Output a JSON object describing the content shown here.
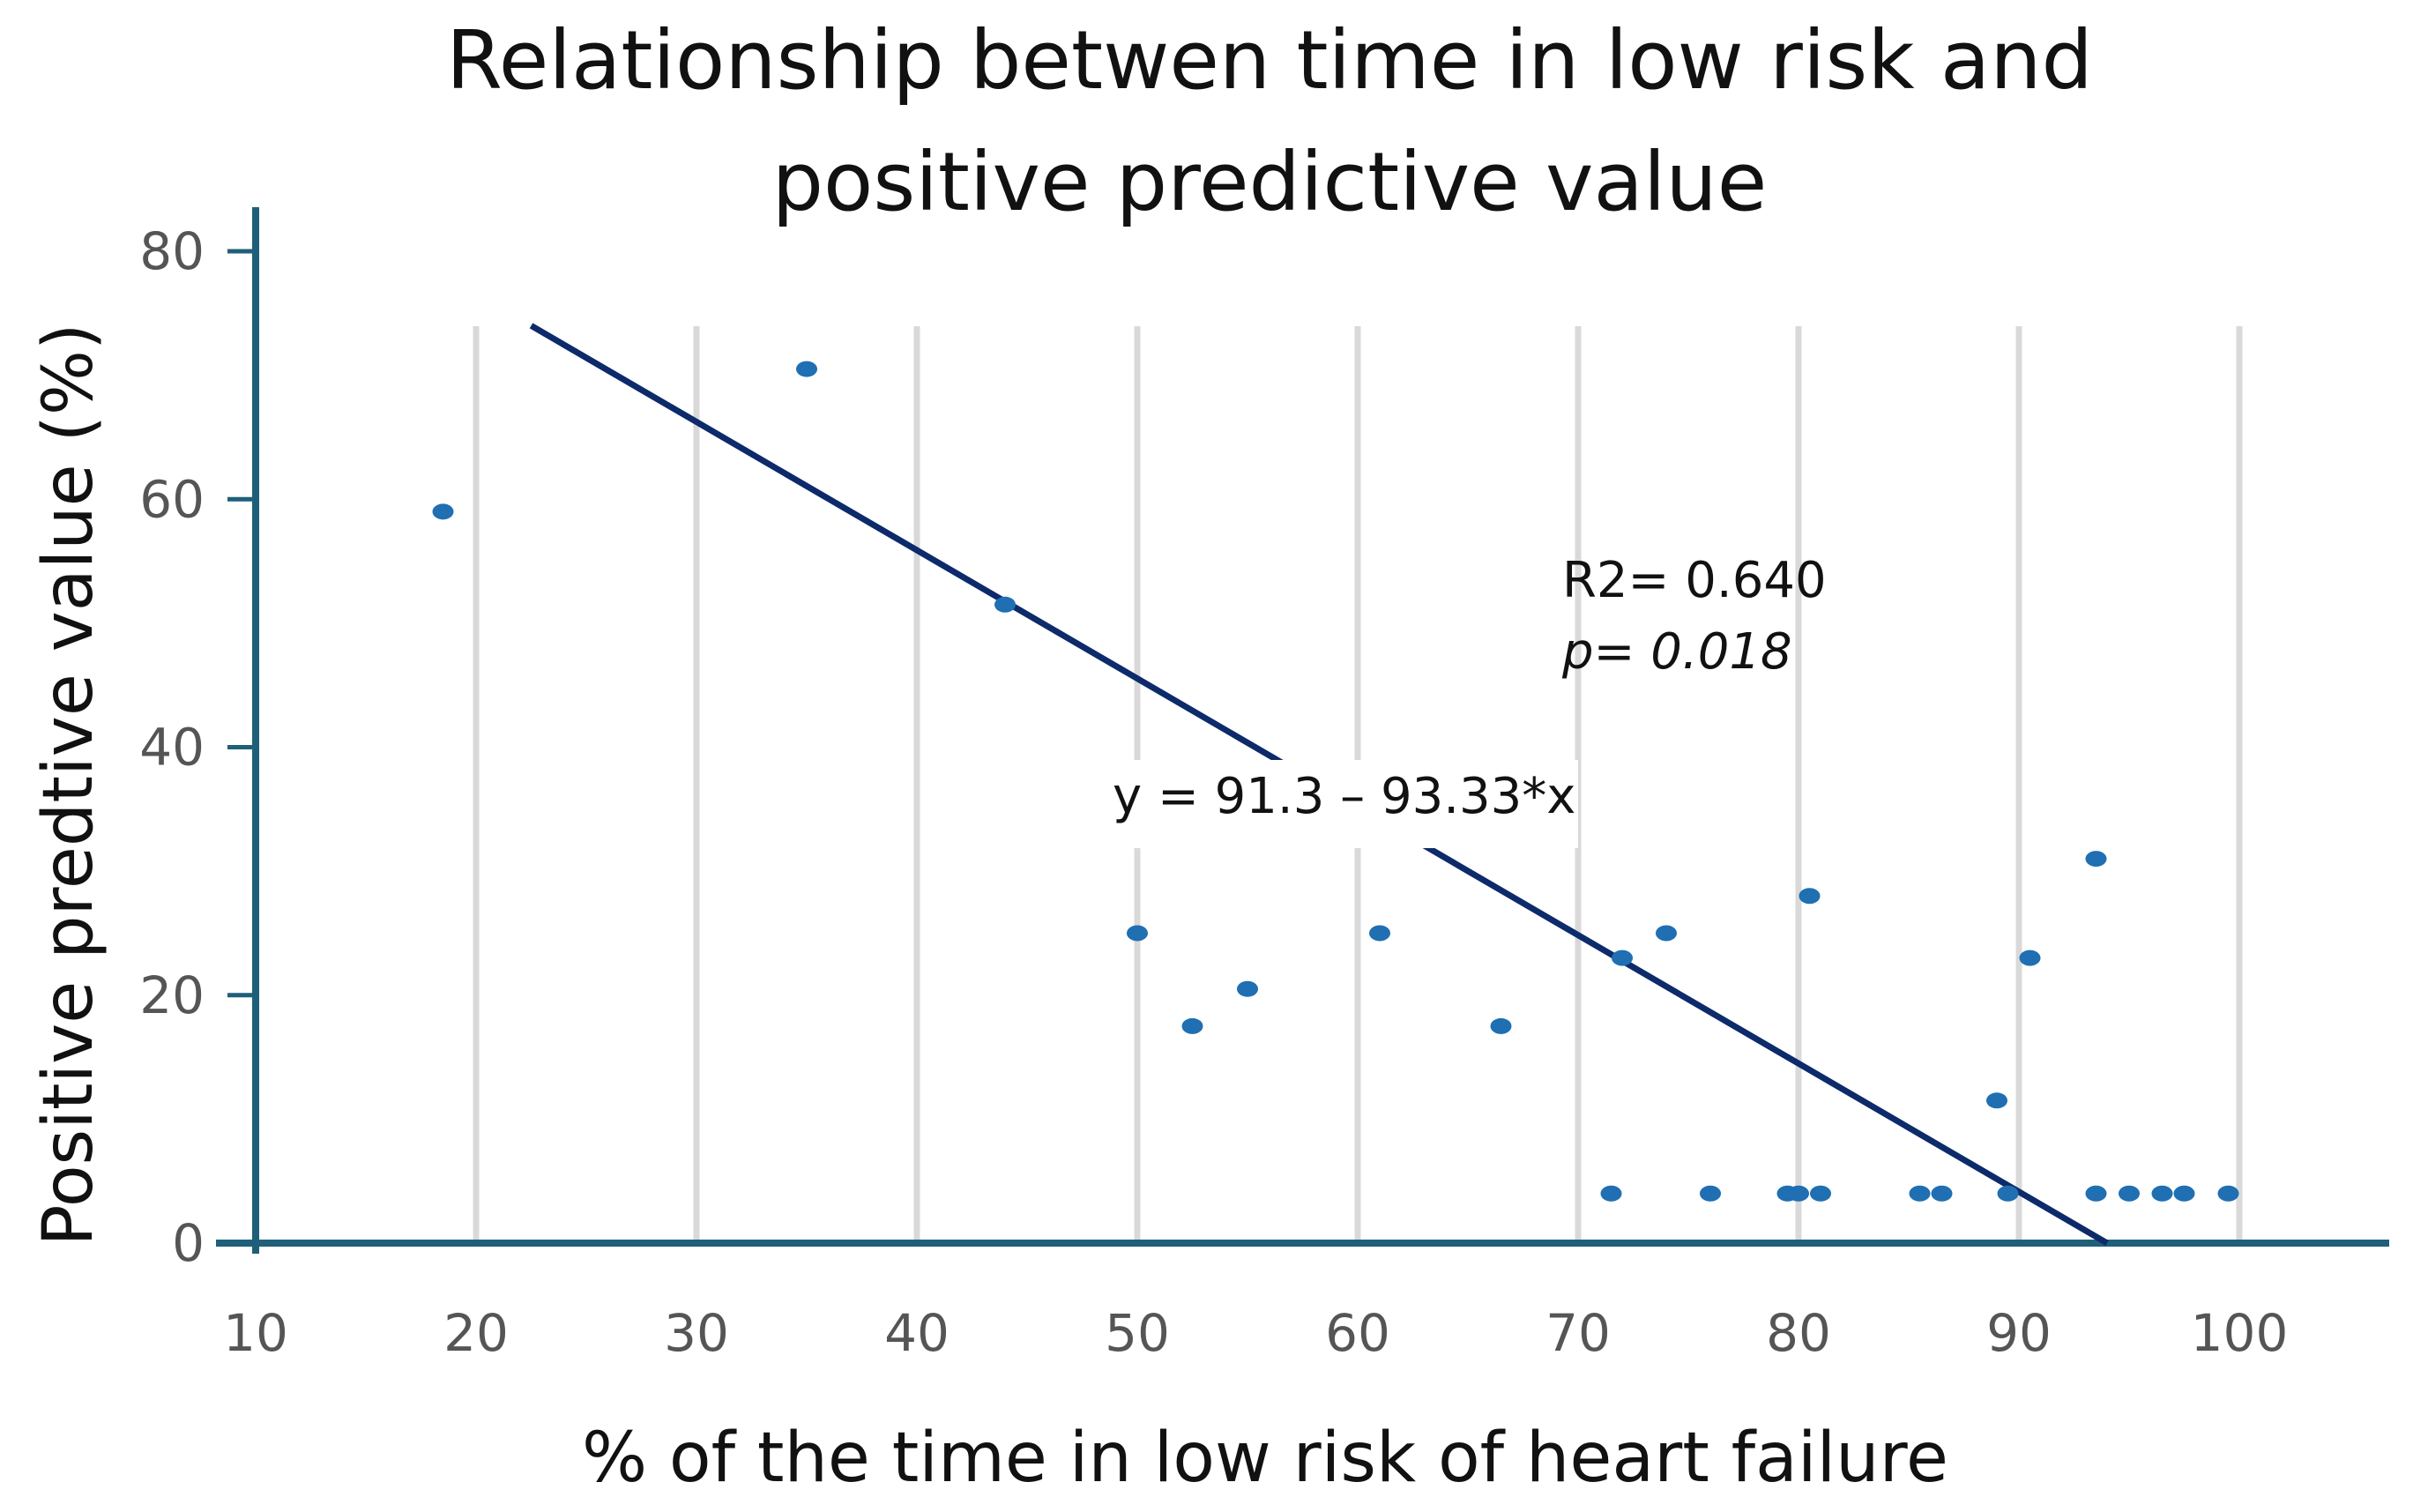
{
  "chart_data": {
    "type": "scatter",
    "title_lines": [
      "Relationship betwen time in low risk and",
      "positive predictive value"
    ],
    "xlabel": "% of the time in low risk of heart failure",
    "ylabel": "Positive predtive value (%)",
    "xlim": [
      10,
      105
    ],
    "ylim": [
      0,
      80
    ],
    "x_ticks": [
      "10",
      "20",
      "30",
      "40",
      "50",
      "60",
      "70",
      "80",
      "90",
      "100"
    ],
    "y_ticks": [
      "0",
      "20",
      "40",
      "60",
      "80"
    ],
    "grid": "vertical",
    "series": [
      {
        "name": "Positive predictive value",
        "points": [
          [
            18.5,
            59
          ],
          [
            35,
            70.5
          ],
          [
            44,
            51.5
          ],
          [
            50,
            25
          ],
          [
            52.5,
            17.5
          ],
          [
            55,
            20.5
          ],
          [
            61,
            25
          ],
          [
            66.5,
            17.5
          ],
          [
            71.5,
            4
          ],
          [
            72,
            23
          ],
          [
            74,
            25
          ],
          [
            76,
            4
          ],
          [
            79.5,
            4
          ],
          [
            80,
            4
          ],
          [
            80.5,
            28
          ],
          [
            81,
            4
          ],
          [
            85.5,
            4
          ],
          [
            86.5,
            4
          ],
          [
            89,
            11.5
          ],
          [
            89.5,
            4
          ],
          [
            90.5,
            23
          ],
          [
            93.5,
            31
          ],
          [
            93.5,
            4
          ],
          [
            95,
            4
          ],
          [
            96.5,
            4
          ],
          [
            97.5,
            4
          ],
          [
            99.5,
            4
          ]
        ]
      }
    ],
    "trendline": {
      "x_start": 22.5,
      "y_start": 74,
      "x_end": 94,
      "y_end": 0
    },
    "annotations": {
      "r2": "R2= 0.640",
      "p": "p= 0.018",
      "equation": "y = 91.3 – 93.33*x"
    },
    "colors": {
      "points": "#1f6fb2",
      "trendline": "#0d2a6b",
      "axis": "#1f5f7a",
      "grid": "#d9d9d9"
    }
  }
}
